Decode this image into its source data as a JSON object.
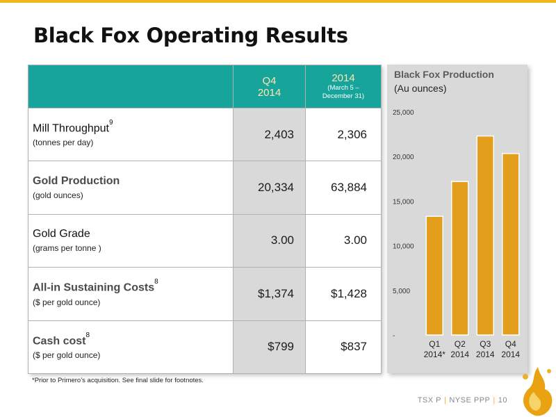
{
  "slide": {
    "title": "Black Fox Operating Results",
    "footnote": "*Prior to Primero’s acquisition. See final slide for footnotes.",
    "footer": {
      "ticker_tsx": "TSX P",
      "ticker_nyse": "NYSE PPP",
      "page": "10"
    },
    "accent_color": "#f3b51c",
    "header_color": "#17a49a"
  },
  "table": {
    "headers": [
      {
        "line1": "Q4",
        "line2": "2014"
      },
      {
        "line1": "2014",
        "line2": "(March 5 –",
        "line3": "December 31)"
      }
    ],
    "rows": [
      {
        "metric": "Mill Throughput",
        "sup": "9",
        "unit": "(tonnes per day)",
        "q4": "2,403",
        "year": "2,306"
      },
      {
        "metric": "Gold Production",
        "sup": "",
        "unit": "(gold ounces)",
        "q4": "20,334",
        "year": "63,884"
      },
      {
        "metric": "Gold Grade",
        "sup": "",
        "unit": "(grams per tonne )",
        "q4": "3.00",
        "year": "3.00"
      },
      {
        "metric": "All-in Sustaining Costs",
        "sup": "8",
        "unit": "($ per gold ounce)",
        "q4": "$1,374",
        "year": "$1,428"
      },
      {
        "metric": "Cash cost",
        "sup": "8",
        "unit": "($ per gold ounce)",
        "q4": "$799",
        "year": "$837"
      }
    ]
  },
  "chart_data": {
    "type": "bar",
    "title": "Black Fox Production",
    "subtitle": "(Au ounces)",
    "categories": [
      {
        "line1": "Q1",
        "line2": "2014*"
      },
      {
        "line1": "Q2",
        "line2": "2014"
      },
      {
        "line1": "Q3",
        "line2": "2014"
      },
      {
        "line1": "Q4",
        "line2": "2014"
      }
    ],
    "values": [
      13300,
      17200,
      22300,
      20334
    ],
    "ylim": [
      0,
      25000
    ],
    "yticks": [
      {
        "value": 0,
        "label": "-"
      },
      {
        "value": 5000,
        "label": "5,000"
      },
      {
        "value": 10000,
        "label": "10,000"
      },
      {
        "value": 15000,
        "label": "15,000"
      },
      {
        "value": 20000,
        "label": "20,000"
      },
      {
        "value": 25000,
        "label": "25,000"
      }
    ],
    "bar_color": "#e39e1c",
    "grid": false
  }
}
